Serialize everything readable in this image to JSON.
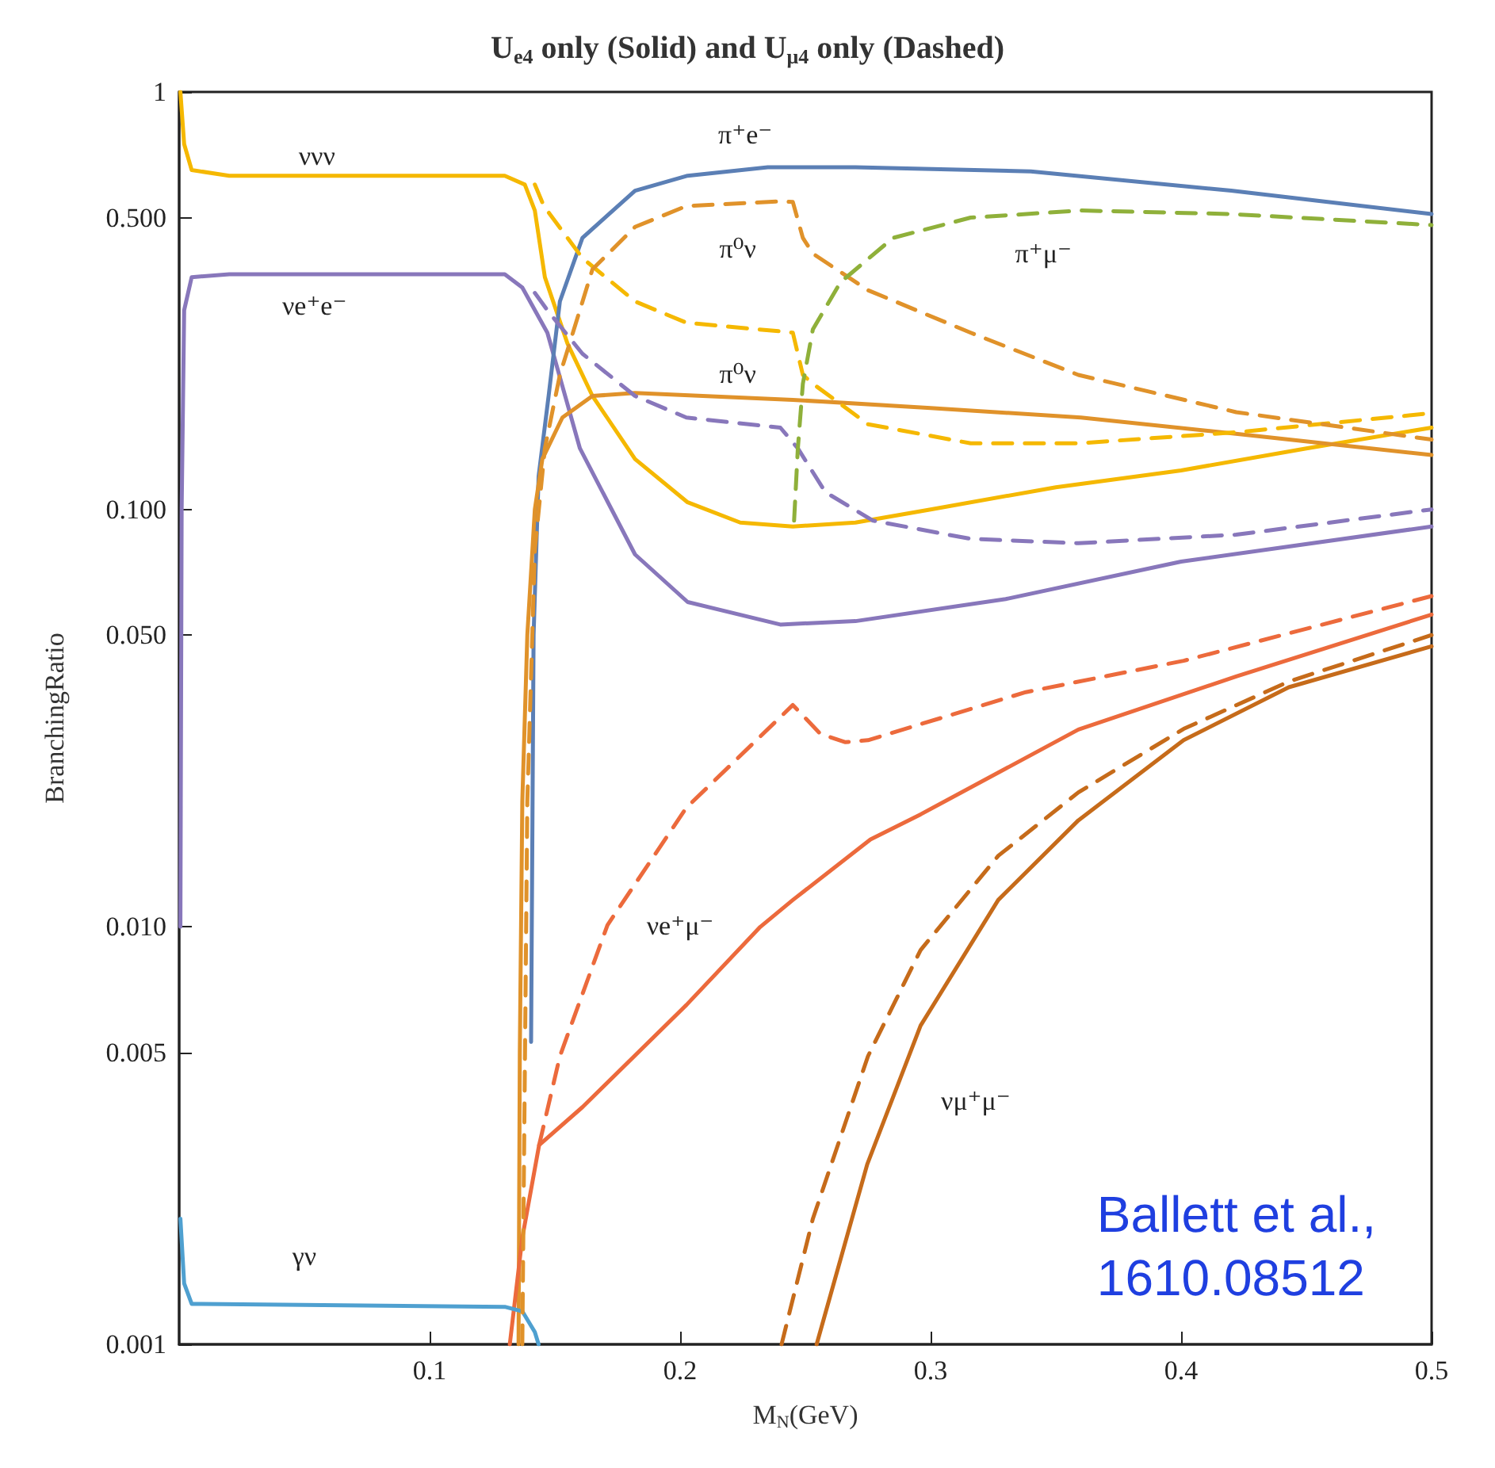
{
  "chart_data": {
    "type": "line",
    "title": "U$_{e4}$ only (Solid) and U$_{μ4}$ only (Dashed)",
    "xlabel": "M$_{N}$(GeV)",
    "ylabel": "BranchingRatio",
    "log": "y",
    "grid": false,
    "marker": "none",
    "xlim": [
      0,
      0.5
    ],
    "xticks": [
      0.1,
      0.2,
      0.3,
      0.4,
      0.5
    ],
    "ylim": [
      0.001,
      1
    ],
    "yticks": [
      {
        "value": 0.001,
        "label": "0.001"
      },
      {
        "value": 0.005,
        "label": "0.005"
      },
      {
        "value": 0.01,
        "label": "0.010"
      },
      {
        "value": 0.05,
        "label": "0.050"
      },
      {
        "value": 0.1,
        "label": "0.100"
      },
      {
        "value": 0.5,
        "label": "0.500"
      },
      1
    ],
    "series": [
      {
        "color": "#f5b800",
        "line_style": "solid",
        "x": [
          0.0005,
          0.002,
          0.005,
          0.02,
          0.13,
          0.138,
          0.142,
          0.146,
          0.155,
          0.165,
          0.182,
          0.203,
          0.224,
          0.245,
          0.27,
          0.3,
          0.35,
          0.4,
          0.45,
          0.5
        ],
        "values": [
          1,
          0.75,
          0.65,
          0.63,
          0.63,
          0.6,
          0.52,
          0.36,
          0.25,
          0.187,
          0.132,
          0.104,
          0.093,
          0.091,
          0.093,
          0.1,
          0.113,
          0.124,
          0.14,
          0.157
        ]
      },
      {
        "color": "#8877bb",
        "line_style": "solid",
        "x": [
          0.0005,
          0.001,
          0.002,
          0.005,
          0.02,
          0.13,
          0.137,
          0.147,
          0.16,
          0.182,
          0.203,
          0.24,
          0.27,
          0.33,
          0.4,
          0.5
        ],
        "values": [
          0.01,
          0.1,
          0.3,
          0.36,
          0.366,
          0.366,
          0.34,
          0.265,
          0.14,
          0.078,
          0.06,
          0.053,
          0.054,
          0.061,
          0.075,
          0.091
        ]
      },
      {
        "color": "#5b7fb5",
        "line_style": "solid",
        "x": [
          0.1405,
          0.1415,
          0.1435,
          0.1475,
          0.152,
          0.161,
          0.182,
          0.203,
          0.235,
          0.27,
          0.34,
          0.42,
          0.5
        ],
        "values": [
          0.0053,
          0.05,
          0.12,
          0.187,
          0.315,
          0.447,
          0.58,
          0.63,
          0.66,
          0.66,
          0.645,
          0.58,
          0.51
        ]
      },
      {
        "color": "#e0922a",
        "line_style": "solid",
        "x": [
          0.1355,
          0.136,
          0.137,
          0.139,
          0.142,
          0.145,
          0.153,
          0.165,
          0.182,
          0.245,
          0.3,
          0.36,
          0.43,
          0.5
        ],
        "values": [
          0.001,
          0.005,
          0.02,
          0.05,
          0.1,
          0.132,
          0.166,
          0.187,
          0.19,
          0.183,
          0.175,
          0.166,
          0.15,
          0.135
        ]
      },
      {
        "color": "#ec6a3c",
        "line_style": "solid",
        "x": [
          0.132,
          0.137,
          0.1437,
          0.161,
          0.2025,
          0.232,
          0.245,
          0.276,
          0.296,
          0.359,
          0.422,
          0.5
        ],
        "values": [
          0.001,
          0.0018,
          0.003,
          0.0037,
          0.0065,
          0.01,
          0.0116,
          0.0162,
          0.0186,
          0.0297,
          0.0398,
          0.056
        ]
      },
      {
        "color": "#c66b1a",
        "line_style": "solid",
        "x": [
          0.2545,
          0.2747,
          0.296,
          0.327,
          0.359,
          0.401,
          0.443,
          0.5
        ],
        "values": [
          0.001,
          0.0027,
          0.0058,
          0.0116,
          0.018,
          0.028,
          0.0375,
          0.047
        ]
      },
      {
        "color": "#4fa0d0",
        "line_style": "solid",
        "x": [
          0.0005,
          0.002,
          0.005,
          0.13,
          0.137,
          0.142,
          0.1435
        ],
        "values": [
          0.002,
          0.0014,
          0.00125,
          0.00123,
          0.0012,
          0.00107,
          0.001
        ]
      },
      {
        "color": "#f5b800",
        "line_style": "dashed",
        "x": [
          0.142,
          0.1456,
          0.161,
          0.182,
          0.2025,
          0.24,
          0.245,
          0.249,
          0.253,
          0.275,
          0.316,
          0.359,
          0.422,
          0.5
        ],
        "values": [
          0.6,
          0.533,
          0.4,
          0.315,
          0.28,
          0.267,
          0.265,
          0.21,
          0.2,
          0.16,
          0.144,
          0.144,
          0.153,
          0.17
        ]
      },
      {
        "color": "#8877bb",
        "line_style": "dashed",
        "x": [
          0.142,
          0.147,
          0.161,
          0.182,
          0.2025,
          0.24,
          0.247,
          0.258,
          0.277,
          0.316,
          0.359,
          0.422,
          0.5
        ],
        "values": [
          0.33,
          0.3,
          0.236,
          0.187,
          0.166,
          0.157,
          0.14,
          0.11,
          0.094,
          0.085,
          0.083,
          0.087,
          0.1
        ]
      },
      {
        "color": "#e0922a",
        "line_style": "dashed",
        "x": [
          0.137,
          0.139,
          0.142,
          0.146,
          0.152,
          0.165,
          0.182,
          0.2025,
          0.24,
          0.245,
          0.249,
          0.253,
          0.275,
          0.316,
          0.359,
          0.422,
          0.5
        ],
        "values": [
          0.001,
          0.02,
          0.08,
          0.14,
          0.21,
          0.376,
          0.475,
          0.533,
          0.547,
          0.545,
          0.447,
          0.41,
          0.335,
          0.265,
          0.21,
          0.171,
          0.147
        ]
      },
      {
        "color": "#8fb03a",
        "line_style": "dashed",
        "x": [
          0.2455,
          0.247,
          0.249,
          0.253,
          0.264,
          0.285,
          0.316,
          0.36,
          0.42,
          0.5
        ],
        "values": [
          0.094,
          0.14,
          0.2,
          0.27,
          0.35,
          0.447,
          0.5,
          0.52,
          0.51,
          0.48
        ]
      },
      {
        "color": "#ec6a3c",
        "line_style": "dashed",
        "x": [
          0.1437,
          0.152,
          0.171,
          0.2025,
          0.245,
          0.256,
          0.266,
          0.275,
          0.338,
          0.401,
          0.5
        ],
        "values": [
          0.003,
          0.0049,
          0.0101,
          0.0193,
          0.034,
          0.029,
          0.0277,
          0.028,
          0.0365,
          0.0434,
          0.062
        ]
      },
      {
        "color": "#c66b1a",
        "line_style": "dashed",
        "x": [
          0.2405,
          0.253,
          0.275,
          0.296,
          0.327,
          0.359,
          0.401,
          0.443,
          0.5
        ],
        "values": [
          0.001,
          0.002,
          0.0049,
          0.0088,
          0.0148,
          0.021,
          0.0298,
          0.0387,
          0.05
        ]
      }
    ],
    "annotations": [
      "ννν",
      "νe⁺e⁻",
      "π⁺e⁻",
      "π⁰ν",
      "π⁰ν",
      "π⁺μ⁻",
      "νe⁺μ⁻",
      "νμ⁺μ⁻",
      "γν",
      "Ballett et al.,\n1610.08512"
    ]
  }
}
